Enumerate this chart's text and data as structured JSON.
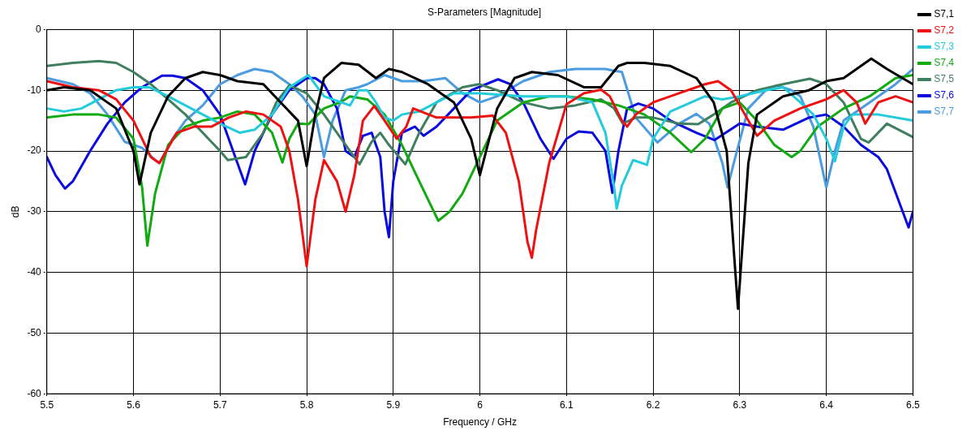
{
  "chart_data": {
    "type": "line",
    "title": "S-Parameters [Magnitude]",
    "xlabel": "Frequency / GHz",
    "ylabel": "dB",
    "xlim": [
      5.5,
      6.5
    ],
    "xticks": [
      5.5,
      5.6,
      5.7,
      5.8,
      5.9,
      6,
      6.1,
      6.2,
      6.3,
      6.4,
      6.5
    ],
    "ylim": [
      -60,
      0
    ],
    "yticks": [
      -60,
      -50,
      -40,
      -30,
      -20,
      -10,
      0
    ],
    "grid": true,
    "legend": "right",
    "marker": "none",
    "line_style": "solid",
    "series": [
      {
        "name": "S7,1",
        "color": "#000000",
        "x": [
          5.5,
          5.52,
          5.55,
          5.58,
          5.6,
          5.607,
          5.62,
          5.64,
          5.66,
          5.68,
          5.7,
          5.72,
          5.75,
          5.77,
          5.79,
          5.8,
          5.81,
          5.82,
          5.84,
          5.86,
          5.88,
          5.895,
          5.91,
          5.94,
          5.97,
          5.99,
          6,
          6.02,
          6.04,
          6.06,
          6.09,
          6.12,
          6.14,
          6.16,
          6.17,
          6.19,
          6.22,
          6.25,
          6.27,
          6.285,
          6.298,
          6.31,
          6.32,
          6.35,
          6.38,
          6.4,
          6.42,
          6.452,
          6.47,
          6.5
        ],
        "values": [
          -10,
          -9.5,
          -10,
          -13,
          -20,
          -25.5,
          -17,
          -11,
          -8,
          -7,
          -7.5,
          -8.5,
          -9,
          -12,
          -15,
          -22.5,
          -14,
          -8,
          -5.5,
          -5.8,
          -8,
          -6.5,
          -7,
          -9,
          -12,
          -18,
          -24,
          -13,
          -8,
          -7,
          -7.5,
          -9.5,
          -9.5,
          -6,
          -5.5,
          -5.5,
          -6,
          -8,
          -12,
          -20,
          -46,
          -22,
          -14,
          -11,
          -10,
          -8.5,
          -8,
          -4.8,
          -6.5,
          -9
        ]
      },
      {
        "name": "S7,2",
        "color": "#ee1111",
        "x": [
          5.5,
          5.53,
          5.56,
          5.58,
          5.6,
          5.62,
          5.63,
          5.65,
          5.67,
          5.69,
          5.71,
          5.73,
          5.75,
          5.77,
          5.78,
          5.79,
          5.8,
          5.81,
          5.82,
          5.835,
          5.845,
          5.855,
          5.865,
          5.878,
          5.89,
          5.904,
          5.915,
          5.923,
          5.95,
          5.97,
          5.99,
          6.015,
          6.03,
          6.045,
          6.055,
          6.06,
          6.065,
          6.08,
          6.1,
          6.12,
          6.14,
          6.15,
          6.164,
          6.17,
          6.18,
          6.2,
          6.23,
          6.26,
          6.275,
          6.29,
          6.31,
          6.32,
          6.34,
          6.37,
          6.4,
          6.42,
          6.435,
          6.445,
          6.46,
          6.48,
          6.5
        ],
        "values": [
          -8.5,
          -9.5,
          -10,
          -11.5,
          -15,
          -21,
          -22,
          -17,
          -16,
          -16,
          -14.5,
          -13.5,
          -14,
          -16,
          -20,
          -28,
          -39,
          -28,
          -21.5,
          -25,
          -30,
          -24,
          -15,
          -12.6,
          -15,
          -18,
          -16,
          -13,
          -14.5,
          -14.5,
          -14.5,
          -14.2,
          -17,
          -25,
          -35,
          -37.6,
          -33,
          -22,
          -12.3,
          -10.5,
          -9.9,
          -11,
          -15,
          -16,
          -14,
          -12,
          -10.5,
          -9,
          -8.5,
          -10,
          -15,
          -17.5,
          -15,
          -13,
          -11.5,
          -10,
          -12,
          -15.5,
          -12,
          -11,
          -12
        ]
      },
      {
        "name": "S7,3",
        "color": "#22ccdd",
        "x": [
          5.5,
          5.52,
          5.54,
          5.56,
          5.58,
          5.6,
          5.618,
          5.64,
          5.66,
          5.68,
          5.7,
          5.723,
          5.74,
          5.76,
          5.78,
          5.802,
          5.82,
          5.84,
          5.85,
          5.86,
          5.87,
          5.88,
          5.89,
          5.9,
          5.91,
          5.93,
          5.95,
          5.97,
          6,
          6.05,
          6.1,
          6.13,
          6.145,
          6.155,
          6.158,
          6.164,
          6.177,
          6.193,
          6.2,
          6.22,
          6.26,
          6.28,
          6.3,
          6.33,
          6.35,
          6.37,
          6.385,
          6.4,
          6.41,
          6.42,
          6.43,
          6.46,
          6.5
        ],
        "values": [
          -13,
          -13.5,
          -13,
          -11.5,
          -10,
          -9.5,
          -9.5,
          -11,
          -12.5,
          -14,
          -15.5,
          -17,
          -16.5,
          -14,
          -9.5,
          -7.5,
          -11,
          -12,
          -12.5,
          -10,
          -10,
          -12,
          -14.5,
          -15,
          -14,
          -13.5,
          -12,
          -10.5,
          -10.5,
          -11,
          -11,
          -12,
          -17,
          -26,
          -29.5,
          -25.7,
          -21.5,
          -22.3,
          -18,
          -13.5,
          -11,
          -11.5,
          -11,
          -10,
          -9.5,
          -12,
          -14,
          -18,
          -21.7,
          -16,
          -14,
          -14,
          -15
        ]
      },
      {
        "name": "S7,4",
        "color": "#11aa11",
        "x": [
          5.5,
          5.53,
          5.56,
          5.58,
          5.6,
          5.61,
          5.616,
          5.625,
          5.64,
          5.66,
          5.68,
          5.7,
          5.72,
          5.74,
          5.76,
          5.772,
          5.78,
          5.79,
          5.802,
          5.82,
          5.84,
          5.85,
          5.87,
          5.89,
          5.91,
          5.93,
          5.952,
          5.965,
          5.98,
          6,
          6.02,
          6.05,
          6.08,
          6.1,
          6.13,
          6.16,
          6.19,
          6.22,
          6.244,
          6.26,
          6.28,
          6.3,
          6.32,
          6.34,
          6.36,
          6.37,
          6.39,
          6.42,
          6.45,
          6.48,
          6.5
        ],
        "values": [
          -14.5,
          -14,
          -14,
          -14.5,
          -18,
          -26,
          -35.6,
          -27,
          -19,
          -16,
          -15,
          -14.5,
          -13.5,
          -14,
          -17,
          -21.9,
          -18,
          -15.5,
          -15.6,
          -13,
          -11.9,
          -11,
          -11.5,
          -14,
          -19,
          -25,
          -31.5,
          -30,
          -27,
          -21,
          -15,
          -12,
          -11,
          -11,
          -11.5,
          -12.5,
          -14,
          -17,
          -20.2,
          -18,
          -13,
          -12,
          -15,
          -19,
          -21,
          -20,
          -16,
          -13,
          -11,
          -8,
          -7.5
        ]
      },
      {
        "name": "S7,5",
        "color": "#3f7f5f",
        "x": [
          5.5,
          5.53,
          5.56,
          5.58,
          5.6,
          5.62,
          5.64,
          5.66,
          5.68,
          5.7,
          5.709,
          5.73,
          5.75,
          5.765,
          5.78,
          5.8,
          5.82,
          5.84,
          5.861,
          5.875,
          5.885,
          5.895,
          5.914,
          5.93,
          5.95,
          5.98,
          5.999,
          6.02,
          6.05,
          6.08,
          6.11,
          6.14,
          6.155,
          6.165,
          6.18,
          6.2,
          6.23,
          6.252,
          6.27,
          6.29,
          6.32,
          6.35,
          6.381,
          6.4,
          6.42,
          6.44,
          6.449,
          6.47,
          6.5
        ],
        "values": [
          -6,
          -5.5,
          -5.2,
          -5.5,
          -7,
          -9,
          -11.5,
          -14,
          -17,
          -20,
          -21.5,
          -21,
          -17,
          -12,
          -9.2,
          -10.5,
          -14,
          -18,
          -22.2,
          -18.5,
          -17,
          -19,
          -22.2,
          -17,
          -12,
          -9.5,
          -9,
          -10,
          -12,
          -13,
          -12.5,
          -11.5,
          -13,
          -15.5,
          -14.5,
          -14.5,
          -15.5,
          -15.6,
          -14,
          -12,
          -10,
          -9,
          -8.1,
          -9,
          -12,
          -18,
          -18.6,
          -15.5,
          -17.7
        ]
      },
      {
        "name": "S7,6",
        "color": "#0a0adf",
        "x": [
          5.5,
          5.51,
          5.521,
          5.53,
          5.55,
          5.57,
          5.59,
          5.61,
          5.633,
          5.645,
          5.66,
          5.68,
          5.7,
          5.715,
          5.729,
          5.74,
          5.76,
          5.78,
          5.8,
          5.81,
          5.82,
          5.835,
          5.845,
          5.855,
          5.865,
          5.875,
          5.885,
          5.89,
          5.895,
          5.9,
          5.91,
          5.925,
          5.935,
          5.95,
          5.97,
          5.99,
          6.021,
          6.035,
          6.05,
          6.07,
          6.085,
          6.1,
          6.114,
          6.13,
          6.145,
          6.153,
          6.16,
          6.17,
          6.183,
          6.2,
          6.22,
          6.25,
          6.271,
          6.3,
          6.32,
          6.35,
          6.38,
          6.4,
          6.42,
          6.44,
          6.46,
          6.47,
          6.495,
          6.5
        ],
        "values": [
          -21,
          -24,
          -26.2,
          -25,
          -20,
          -15.5,
          -12,
          -9.5,
          -7.6,
          -7.6,
          -8,
          -10,
          -14,
          -20,
          -25.5,
          -20,
          -14,
          -10,
          -8,
          -8,
          -9,
          -13,
          -20,
          -21,
          -17.5,
          -17,
          -21,
          -30,
          -34.2,
          -25,
          -17,
          -16,
          -17.5,
          -16,
          -13,
          -10,
          -8.2,
          -9,
          -12,
          -18,
          -21.3,
          -18,
          -16.8,
          -17,
          -20,
          -26.9,
          -20,
          -13,
          -12.2,
          -13,
          -15,
          -17,
          -18.2,
          -15.5,
          -16,
          -16.5,
          -14.5,
          -14,
          -16,
          -19,
          -21,
          -23,
          -32.6,
          -30
        ]
      },
      {
        "name": "S7,7",
        "color": "#4a9be0",
        "x": [
          5.5,
          5.53,
          5.55,
          5.57,
          5.59,
          5.61,
          5.625,
          5.63,
          5.645,
          5.66,
          5.68,
          5.7,
          5.72,
          5.74,
          5.76,
          5.78,
          5.795,
          5.81,
          5.82,
          5.83,
          5.845,
          5.86,
          5.87,
          5.89,
          5.91,
          5.935,
          5.96,
          5.98,
          6,
          6.02,
          6.05,
          6.08,
          6.11,
          6.13,
          6.145,
          6.155,
          6.164,
          6.18,
          6.205,
          6.23,
          6.25,
          6.265,
          6.28,
          6.286,
          6.295,
          6.31,
          6.33,
          6.343,
          6.36,
          6.37,
          6.385,
          6.4,
          6.41,
          6.42,
          6.45,
          6.48,
          6.5
        ],
        "values": [
          -8,
          -9,
          -10.5,
          -14,
          -18.5,
          -19.5,
          -21.5,
          -22,
          -18,
          -15,
          -12.5,
          -9,
          -7.5,
          -6.5,
          -7,
          -9,
          -11,
          -14,
          -21,
          -15,
          -10,
          -9.5,
          -9,
          -7.5,
          -8.5,
          -8.5,
          -8,
          -10.5,
          -12,
          -11,
          -8.5,
          -7,
          -6.5,
          -6.5,
          -6.5,
          -6.8,
          -7,
          -14.5,
          -18.6,
          -15.5,
          -13.9,
          -15.5,
          -22,
          -26,
          -21,
          -13,
          -10,
          -9.2,
          -10,
          -11,
          -16,
          -26,
          -20,
          -15,
          -12,
          -9,
          -6.5
        ]
      }
    ]
  }
}
